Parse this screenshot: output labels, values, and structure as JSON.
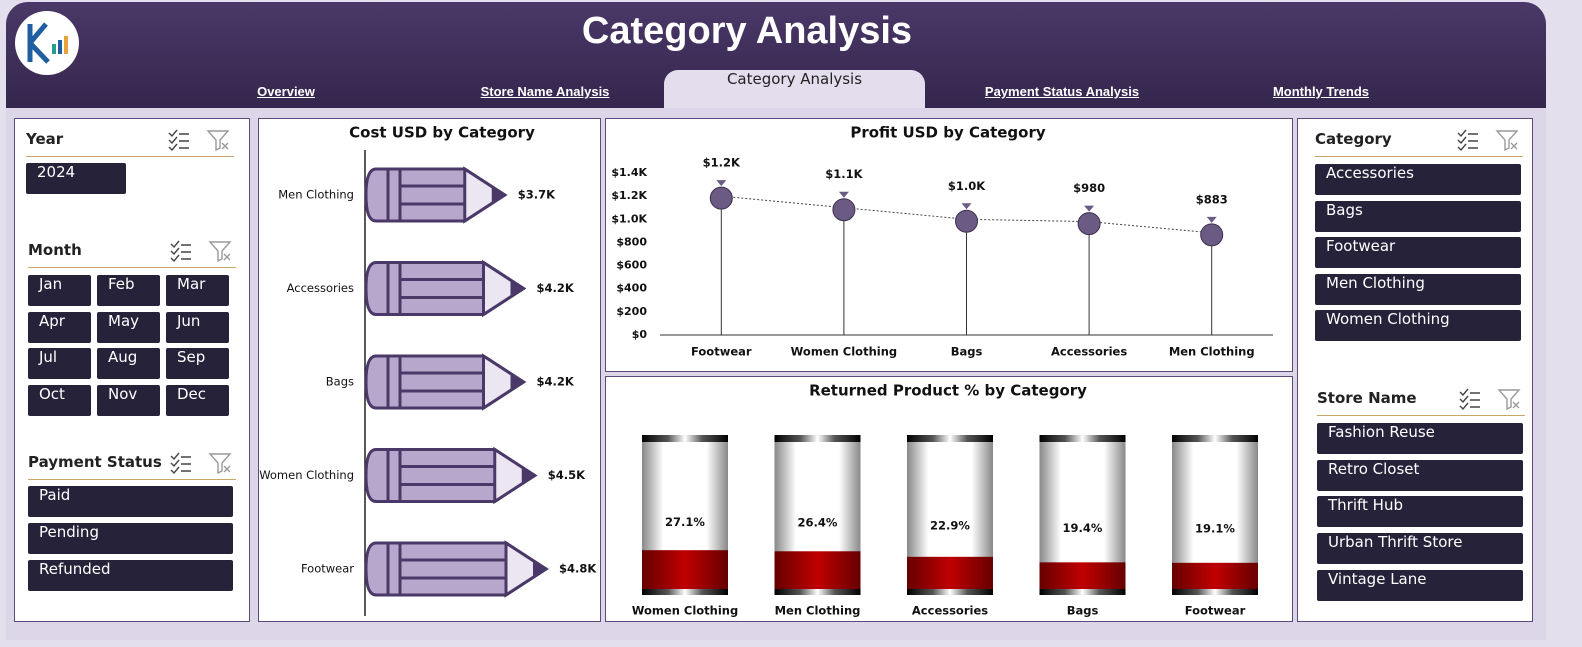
{
  "header": {
    "title": "Category Analysis"
  },
  "tabs": [
    "Overview",
    "Store Name Analysis",
    "Category Analysis",
    "Payment Status Analysis",
    "Monthly Trends"
  ],
  "slicers": {
    "year": {
      "title": "Year",
      "items": [
        "2024"
      ]
    },
    "month": {
      "title": "Month",
      "items": [
        "Jan",
        "Feb",
        "Mar",
        "Apr",
        "May",
        "Jun",
        "Jul",
        "Aug",
        "Sep",
        "Oct",
        "Nov",
        "Dec"
      ]
    },
    "payment_status": {
      "title": "Payment Status",
      "items": [
        "Paid",
        "Pending",
        "Refunded"
      ]
    },
    "category": {
      "title": "Category",
      "items": [
        "Accessories",
        "Bags",
        "Footwear",
        "Men Clothing",
        "Women Clothing"
      ]
    },
    "store_name": {
      "title": "Store Name",
      "items": [
        "Fashion Reuse",
        "Retro Closet",
        "Thrift Hub",
        "Urban Thrift Store",
        "Vintage Lane"
      ]
    }
  },
  "chart_data": [
    {
      "type": "pencil",
      "title": "Cost USD by Category",
      "categories": [
        "Men Clothing",
        "Accessories",
        "Bags",
        "Women Clothing",
        "Footwear"
      ],
      "values": [
        3700,
        4200,
        4200,
        4500,
        4800
      ],
      "value_labels": [
        "$3.7K",
        "$4.2K",
        "$4.2K",
        "$4.5K",
        "$4.8K"
      ],
      "color": "#b8a7cc"
    },
    {
      "type": "lollipop",
      "title": "Profit USD by Category",
      "categories": [
        "Footwear",
        "Women Clothing",
        "Bags",
        "Accessories",
        "Men Clothing"
      ],
      "values": [
        1200,
        1100,
        1000,
        980,
        883
      ],
      "value_labels": [
        "$1.2K",
        "$1.1K",
        "$1.0K",
        "$980",
        "$883"
      ],
      "ylim": [
        0,
        1400
      ],
      "yticks": [
        {
          "value": 0,
          "label": "$0"
        },
        {
          "value": 200,
          "label": "$200"
        },
        {
          "value": 400,
          "label": "$400"
        },
        {
          "value": 600,
          "label": "$600"
        },
        {
          "value": 800,
          "label": "$800"
        },
        {
          "value": 1000,
          "label": "$1.0K"
        },
        {
          "value": 1200,
          "label": "$1.2K"
        },
        {
          "value": 1400,
          "label": "$1.4K"
        }
      ],
      "color": "#6b5a84"
    },
    {
      "type": "tube",
      "title": "Returned Product % by Category",
      "categories": [
        "Women Clothing",
        "Men Clothing",
        "Accessories",
        "Bags",
        "Footwear"
      ],
      "values": [
        27.1,
        26.4,
        22.9,
        19.4,
        19.1
      ],
      "value_labels": [
        "27.1%",
        "26.4%",
        "22.9%",
        "19.4%",
        "19.1%"
      ],
      "ylim": [
        0,
        100
      ],
      "color": "#c00000"
    }
  ]
}
